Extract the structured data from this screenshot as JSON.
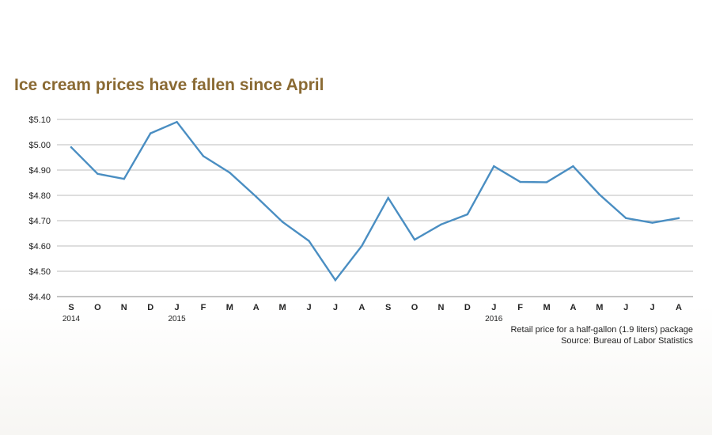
{
  "chart_data": {
    "type": "line",
    "title": "Ice cream prices have fallen since April",
    "xlabel": "",
    "ylabel": "",
    "ylim": [
      4.4,
      5.1
    ],
    "yticks": [
      4.4,
      4.5,
      4.6,
      4.7,
      4.8,
      4.9,
      5.0,
      5.1
    ],
    "ytick_labels": [
      "$4.40",
      "$4.50",
      "$4.60",
      "$4.70",
      "$4.80",
      "$4.90",
      "$5.00",
      "$5.10"
    ],
    "categories": [
      "S",
      "O",
      "N",
      "D",
      "J",
      "F",
      "M",
      "A",
      "M",
      "J",
      "J",
      "A",
      "S",
      "O",
      "N",
      "D",
      "J",
      "F",
      "M",
      "A",
      "M",
      "J",
      "J",
      "A"
    ],
    "year_labels": [
      {
        "index": 0,
        "label": "2014"
      },
      {
        "index": 4,
        "label": "2015"
      },
      {
        "index": 16,
        "label": "2016"
      }
    ],
    "series": [
      {
        "values": [
          4.99,
          4.885,
          4.865,
          5.045,
          5.09,
          4.955,
          4.89,
          4.795,
          4.695,
          4.62,
          4.465,
          4.6,
          4.79,
          4.625,
          4.685,
          4.725,
          4.915,
          4.853,
          4.852,
          4.915,
          4.803,
          4.71,
          4.692,
          4.71
        ]
      }
    ],
    "grid": true,
    "line_color": "#4a8ec2",
    "grid_color": "#bdbdbd",
    "title_color": "#8a6a33"
  },
  "notes": {
    "line1": "Retail price for a half-gallon (1.9 liters) package",
    "line2": "Source: Bureau of Labor Statistics"
  }
}
